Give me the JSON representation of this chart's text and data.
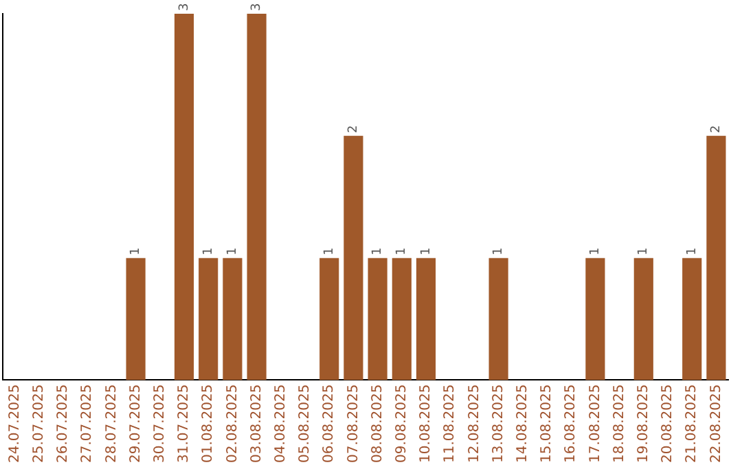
{
  "chart_data": {
    "type": "bar",
    "categories": [
      "24.07.2025",
      "25.07.2025",
      "26.07.2025",
      "27.07.2025",
      "28.07.2025",
      "29.07.2025",
      "30.07.2025",
      "31.07.2025",
      "01.08.2025",
      "02.08.2025",
      "03.08.2025",
      "04.08.2025",
      "05.08.2025",
      "06.08.2025",
      "07.08.2025",
      "08.08.2025",
      "09.08.2025",
      "10.08.2025",
      "11.08.2025",
      "12.08.2025",
      "13.08.2025",
      "14.08.2025",
      "15.08.2025",
      "16.08.2025",
      "17.08.2025",
      "18.08.2025",
      "19.08.2025",
      "20.08.2025",
      "21.08.2025",
      "22.08.2025"
    ],
    "values": [
      0,
      0,
      0,
      0,
      0,
      1,
      0,
      3,
      1,
      1,
      3,
      0,
      0,
      1,
      2,
      1,
      1,
      1,
      0,
      0,
      1,
      0,
      0,
      0,
      1,
      0,
      1,
      0,
      1,
      2
    ],
    "value_labels": [
      null,
      null,
      null,
      null,
      null,
      "1",
      null,
      "3",
      "1",
      "1",
      "3",
      null,
      null,
      "1",
      "2",
      "1",
      "1",
      "1",
      null,
      null,
      "1",
      null,
      null,
      null,
      "1",
      null,
      "1",
      null,
      "1",
      "2"
    ],
    "color": "#a0592a",
    "ylim": [
      0,
      3
    ],
    "tick_labels": "x",
    "grid": false,
    "legend": false
  }
}
